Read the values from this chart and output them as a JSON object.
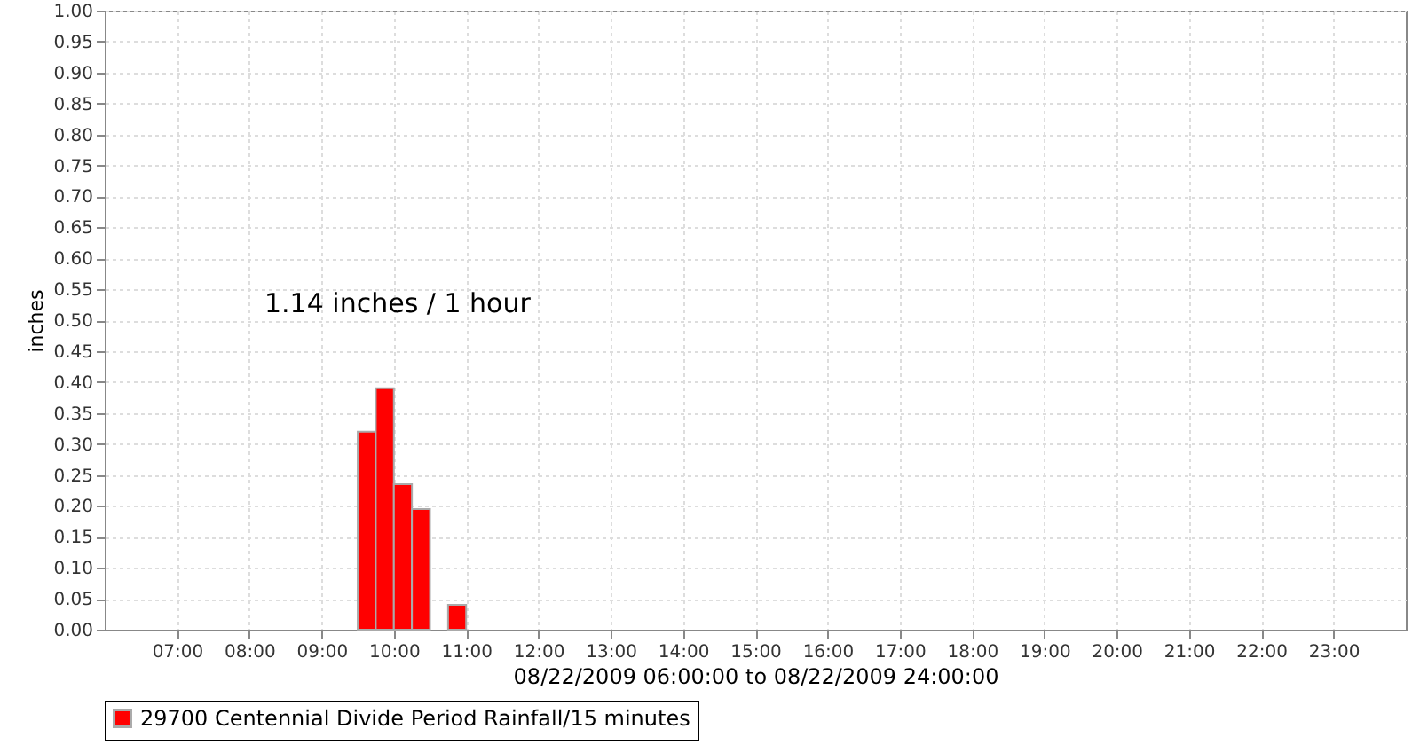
{
  "chart_data": {
    "type": "histogram",
    "xlabel": "08/22/2009 06:00:00 to 08/22/2009 24:00:00",
    "ylabel": "inches",
    "annotations": [
      "1.14 inches / 1 hour"
    ],
    "bins": [
      9.5,
      9.75,
      10,
      10.25,
      10.5,
      10.75,
      11
    ],
    "series": [
      {
        "name": "29700 Centennial Divide Period Rainfall/15 minutes",
        "color": "#ff0000",
        "values": [
          0.32,
          0.39,
          0.235,
          0.195,
          0,
          0.04
        ]
      }
    ],
    "xlim": [
      6,
      24
    ],
    "xticks": [
      {
        "value": 7,
        "label": "07:00"
      },
      {
        "value": 8,
        "label": "08:00"
      },
      {
        "value": 9,
        "label": "09:00"
      },
      {
        "value": 10,
        "label": "10:00"
      },
      {
        "value": 11,
        "label": "11:00"
      },
      {
        "value": 12,
        "label": "12:00"
      },
      {
        "value": 13,
        "label": "13:00"
      },
      {
        "value": 14,
        "label": "14:00"
      },
      {
        "value": 15,
        "label": "15:00"
      },
      {
        "value": 16,
        "label": "16:00"
      },
      {
        "value": 17,
        "label": "17:00"
      },
      {
        "value": 18,
        "label": "18:00"
      },
      {
        "value": 19,
        "label": "19:00"
      },
      {
        "value": 20,
        "label": "20:00"
      },
      {
        "value": 21,
        "label": "21:00"
      },
      {
        "value": 22,
        "label": "22:00"
      },
      {
        "value": 23,
        "label": "23:00"
      }
    ],
    "ylim": [
      0,
      1
    ],
    "yticks": [
      {
        "value": 0,
        "label": "0.00"
      },
      0.05,
      {
        "value": 0.1,
        "label": "0.10"
      },
      0.15,
      {
        "value": 0.2,
        "label": "0.20"
      },
      0.25,
      {
        "value": 0.3,
        "label": "0.30"
      },
      0.35,
      {
        "value": 0.4,
        "label": "0.40"
      },
      0.45,
      {
        "value": 0.5,
        "label": "0.50"
      },
      0.55,
      {
        "value": 0.6,
        "label": "0.60"
      },
      0.65,
      {
        "value": 0.7,
        "label": "0.70"
      },
      0.75,
      {
        "value": 0.8,
        "label": "0.80"
      },
      0.85,
      {
        "value": 0.9,
        "label": "0.90"
      },
      0.95,
      {
        "value": 1,
        "label": "1.00"
      }
    ],
    "grid": true,
    "legend": "bottom"
  }
}
